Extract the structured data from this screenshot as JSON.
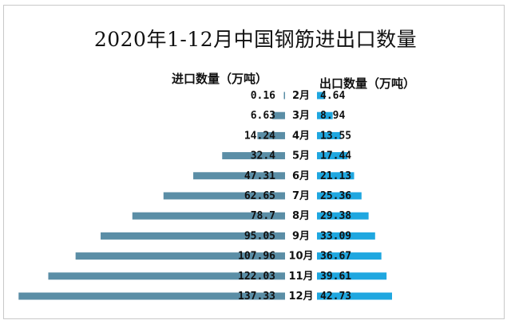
{
  "chart_data": {
    "type": "bar",
    "title": "2020年1-12月中国钢筋进出口数量",
    "categories": [
      "2月",
      "3月",
      "4月",
      "5月",
      "6月",
      "7月",
      "8月",
      "9月",
      "10月",
      "11月",
      "12月"
    ],
    "series": [
      {
        "name": "进口数量（万吨）",
        "values": [
          0.16,
          6.63,
          14.24,
          32.4,
          47.31,
          62.65,
          78.7,
          95.05,
          107.96,
          122.03,
          137.33
        ],
        "labels": [
          "0.16",
          "6.63",
          "14.24",
          "32.4",
          "47.31",
          "62.65",
          "78.7",
          "95.05",
          "107.96",
          "122.03",
          "137.33"
        ]
      },
      {
        "name": "出口数量（万吨）",
        "values": [
          4.64,
          8.94,
          13.55,
          17.44,
          21.13,
          25.36,
          29.38,
          33.09,
          36.67,
          39.61,
          42.73
        ],
        "labels": [
          "4.64",
          "8.94",
          "13.55",
          "17.44",
          "21.13",
          "25.36",
          "29.38",
          "33.09",
          "36.67",
          "39.61",
          "42.73"
        ]
      }
    ],
    "colors": {
      "import": "#5b8ea6",
      "export": "#1fa7e0"
    }
  }
}
